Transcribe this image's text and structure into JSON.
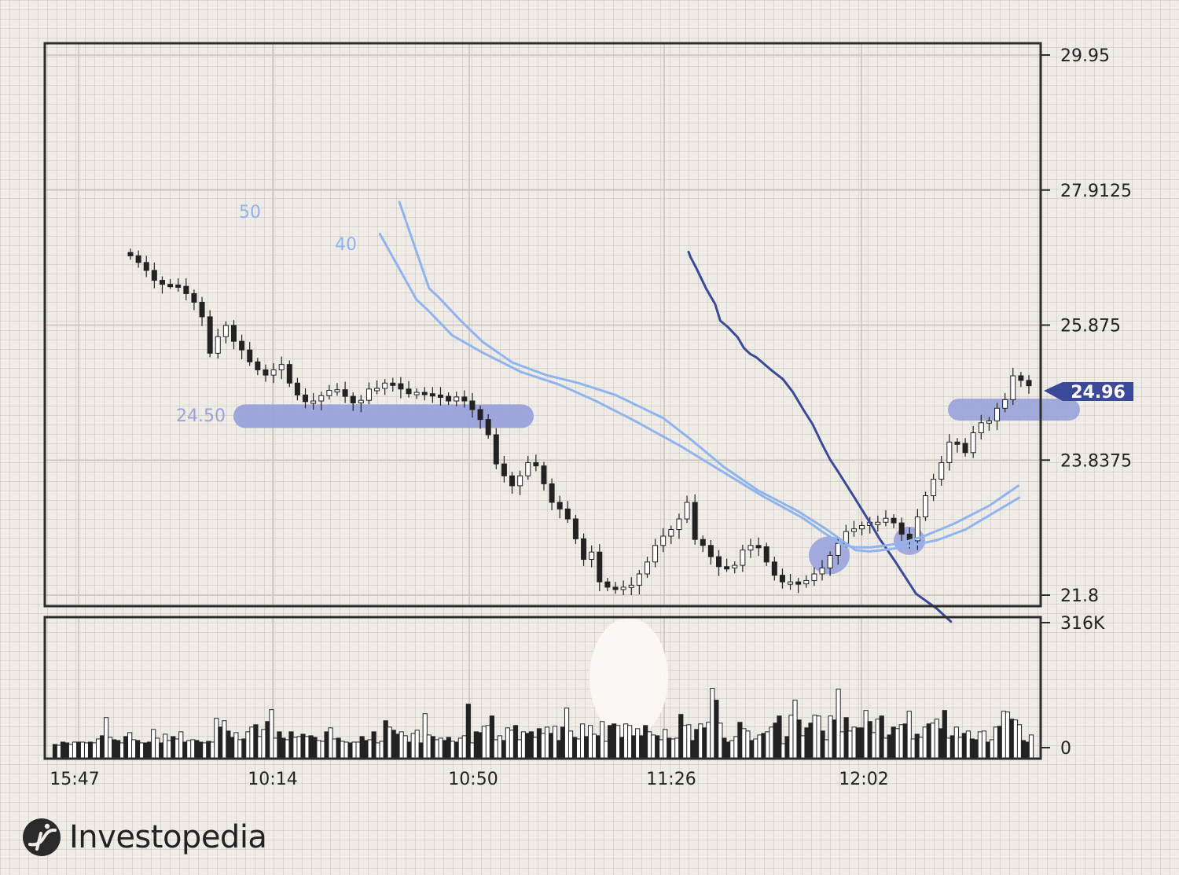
{
  "chart_data": {
    "type": "candlestick",
    "price_ticks": [
      "29.95",
      "27.9125",
      "25.875",
      "23.8375",
      "21.8"
    ],
    "price_tick_values": [
      29.95,
      27.9125,
      25.875,
      23.8375,
      21.8
    ],
    "volume_ticks": [
      "316K",
      "0"
    ],
    "volume_tick_values": [
      316000,
      0
    ],
    "x_ticks": [
      "15:47",
      "10:14",
      "10:50",
      "11:26",
      "12:02"
    ],
    "last_price": "24.96",
    "support_label": "24.50",
    "support_level": 24.5,
    "resistance_level": 24.6,
    "ma_labels": [
      "50",
      "40"
    ],
    "colors": {
      "ma_long": "#3a4a98",
      "ma_short": "#8fb4ee",
      "highlight": "#9aa3db",
      "down_candle": "#222222",
      "up_candle": "#ffffff",
      "volume_glow": "#fbf8f4"
    },
    "closes": [
      26.92,
      26.82,
      26.7,
      26.55,
      26.49,
      26.48,
      26.46,
      26.35,
      26.22,
      26.0,
      25.45,
      25.7,
      25.87,
      25.63,
      25.5,
      25.32,
      25.2,
      25.12,
      25.2,
      25.28,
      25.0,
      24.82,
      24.72,
      24.73,
      24.81,
      24.89,
      24.9,
      24.8,
      24.7,
      24.74,
      24.91,
      24.92,
      25.0,
      24.99,
      24.91,
      24.84,
      24.86,
      24.84,
      24.82,
      24.8,
      24.73,
      24.79,
      24.73,
      24.6,
      24.45,
      24.22,
      23.78,
      23.6,
      23.45,
      23.6,
      23.8,
      23.75,
      23.48,
      23.2,
      23.1,
      22.95,
      22.65,
      22.34,
      22.45,
      22.0,
      21.92,
      21.9,
      21.92,
      21.95,
      22.12,
      22.3,
      22.55,
      22.69,
      22.79,
      22.95,
      23.2,
      22.64,
      22.55,
      22.38,
      22.23,
      22.21,
      22.25,
      22.48,
      22.55,
      22.53,
      22.3,
      22.1,
      22.0,
      22.0,
      21.97,
      22.02,
      22.12,
      22.21,
      22.4,
      22.58,
      22.76,
      22.8,
      22.85,
      22.9,
      22.9,
      22.96,
      22.89,
      22.72,
      22.62,
      22.98,
      23.3,
      23.55,
      23.8,
      24.11,
      24.09,
      23.95,
      24.25,
      24.4,
      24.43,
      24.62,
      24.75,
      25.11,
      25.04,
      24.96
    ],
    "ma_long": [
      [
        26.98,
        27.0
      ],
      [
        26.9,
        27.1
      ],
      [
        26.72,
        27.4
      ],
      [
        26.43,
        27.85
      ],
      [
        26.19,
        28.3
      ],
      [
        25.94,
        28.55
      ],
      [
        25.85,
        28.9
      ],
      [
        25.69,
        29.4
      ],
      [
        25.53,
        29.7
      ],
      [
        25.44,
        30.0
      ],
      [
        25.39,
        30.3
      ],
      [
        25.18,
        31.1
      ],
      [
        25.06,
        31.6
      ],
      [
        24.86,
        32.1
      ],
      [
        24.6,
        32.6
      ],
      [
        24.38,
        33.05
      ],
      [
        24.09,
        33.5
      ],
      [
        23.85,
        33.9
      ],
      [
        23.66,
        34.3
      ],
      [
        23.32,
        35.0
      ],
      [
        22.97,
        35.7
      ],
      [
        22.82,
        36.0
      ],
      [
        22.66,
        36.3
      ],
      [
        22.48,
        36.7
      ],
      [
        22.3,
        37.1
      ],
      [
        22.06,
        37.6
      ],
      [
        21.82,
        38.1
      ],
      [
        21.71,
        38.6
      ],
      [
        21.6,
        39.1
      ],
      [
        21.4,
        39.8
      ]
    ],
    "ma_mid": [
      [
        27.25,
        7.25
      ],
      [
        26.26,
        9.65
      ],
      [
        26.09,
        10.45
      ],
      [
        25.72,
        12.0
      ],
      [
        25.46,
        14.0
      ],
      [
        25.17,
        16.5
      ],
      [
        24.98,
        19.0
      ],
      [
        24.74,
        21.35
      ],
      [
        24.43,
        24.0
      ],
      [
        24.05,
        27.0
      ],
      [
        23.7,
        29.5
      ],
      [
        23.28,
        32.5
      ],
      [
        22.97,
        35.0
      ],
      [
        22.73,
        36.5
      ],
      [
        22.55,
        37.7
      ],
      [
        22.52,
        38.6
      ],
      [
        22.52,
        39.5
      ],
      [
        22.55,
        40.5
      ],
      [
        22.59,
        41.6
      ],
      [
        22.69,
        43.0
      ],
      [
        22.88,
        45.0
      ],
      [
        23.15,
        47.3
      ],
      [
        23.45,
        49.2
      ]
    ],
    "ma_short": [
      [
        27.73,
        5.3
      ],
      [
        26.43,
        7.4
      ],
      [
        26.29,
        8.1
      ],
      [
        25.95,
        9.6
      ],
      [
        25.62,
        11.2
      ],
      [
        25.31,
        13.3
      ],
      [
        25.12,
        15.7
      ],
      [
        25.0,
        18.0
      ],
      [
        24.82,
        20.6
      ],
      [
        24.47,
        24.0
      ],
      [
        24.14,
        26.0
      ],
      [
        23.73,
        28.3
      ],
      [
        23.38,
        30.7
      ],
      [
        23.07,
        33.5
      ],
      [
        22.8,
        35.5
      ],
      [
        22.48,
        37.6
      ],
      [
        22.46,
        38.6
      ],
      [
        22.49,
        40.0
      ],
      [
        22.55,
        41.6
      ],
      [
        22.63,
        43.4
      ],
      [
        22.79,
        45.4
      ],
      [
        23.03,
        47.3
      ],
      [
        23.27,
        49.2
      ]
    ],
    "volume": [
      8000,
      6000,
      14000,
      12000,
      8000,
      14000,
      14000,
      14000,
      12000,
      14000,
      12000,
      22000,
      30000,
      76000,
      26000,
      20000,
      18000,
      12000,
      28000,
      38000,
      20000,
      18000,
      12000,
      12000,
      14000,
      46000,
      24000,
      12000,
      34000,
      18000,
      28000,
      22000,
      40000,
      14000,
      18000,
      20000,
      18000,
      14000,
      12000,
      16000,
      14000,
      74000,
      52000,
      68000,
      42000,
      26000,
      38000,
      20000,
      22000,
      40000,
      52000,
      58000,
      28000,
      46000,
      66000,
      96000,
      24000,
      40000,
      24000,
      20000,
      40000,
      26000,
      28000,
      34000,
      28000,
      30000,
      26000,
      18000,
      16000,
      40000,
      50000,
      22000,
      24000,
      16000,
      14000,
      12000,
      14000,
      14000,
      28000,
      18000,
      20000,
      40000,
      12000,
      16000,
      68000,
      52000,
      44000,
      34000,
      40000,
      30000,
      14000,
      36000,
      44000,
      12000,
      86000,
      32000,
      28000,
      20000,
      24000,
      18000,
      26000,
      16000,
      14000,
      24000,
      30000,
      110000,
      12000,
      40000,
      38000,
      54000,
      56000,
      80000,
      20000,
      30000,
      18000,
      50000,
      44000,
      56000,
      20000,
      40000,
      36000,
      40000,
      26000,
      48000,
      36000,
      52000,
      36000,
      54000,
      18000,
      52000,
      100000,
      42000,
      26000,
      22000,
      60000,
      28000,
      56000,
      34000,
      30000,
      66000,
      16000,
      56000,
      60000,
      56000,
      26000,
      60000,
      56000,
      30000,
      48000,
      30000,
      56000,
      40000,
      32000,
      30000,
      20000,
      46000,
      24000,
      22000,
      24000,
      84000,
      56000,
      58000,
      18000,
      46000,
      60000,
      50000,
      64000,
      150000,
      120000,
      62000,
      24000,
      14000,
      18000,
      28000,
      64000,
      48000,
      42000,
      18000,
      22000,
      32000,
      36000,
      40000,
      52000,
      62000,
      80000,
      10000,
      28000,
      82000,
      120000,
      70000,
      30000,
      50000,
      62000,
      82000,
      80000,
      42000,
      20000,
      80000,
      70000,
      148000,
      40000,
      76000,
      42000,
      52000,
      50000,
      50000,
      94000,
      66000,
      38000,
      72000,
      80000,
      24000,
      32000,
      52000,
      48000,
      58000,
      60000,
      92000,
      22000,
      34000,
      26000,
      52000,
      60000,
      62000,
      72000,
      48000,
      94000,
      24000,
      30000,
      52000,
      26000,
      36000,
      42000,
      22000,
      20000,
      40000,
      42000,
      14000,
      20000,
      52000,
      54000,
      92000,
      90000,
      72000,
      70000,
      58000,
      18000,
      14000,
      32000
    ]
  },
  "brand": {
    "name": "Investopedia"
  }
}
